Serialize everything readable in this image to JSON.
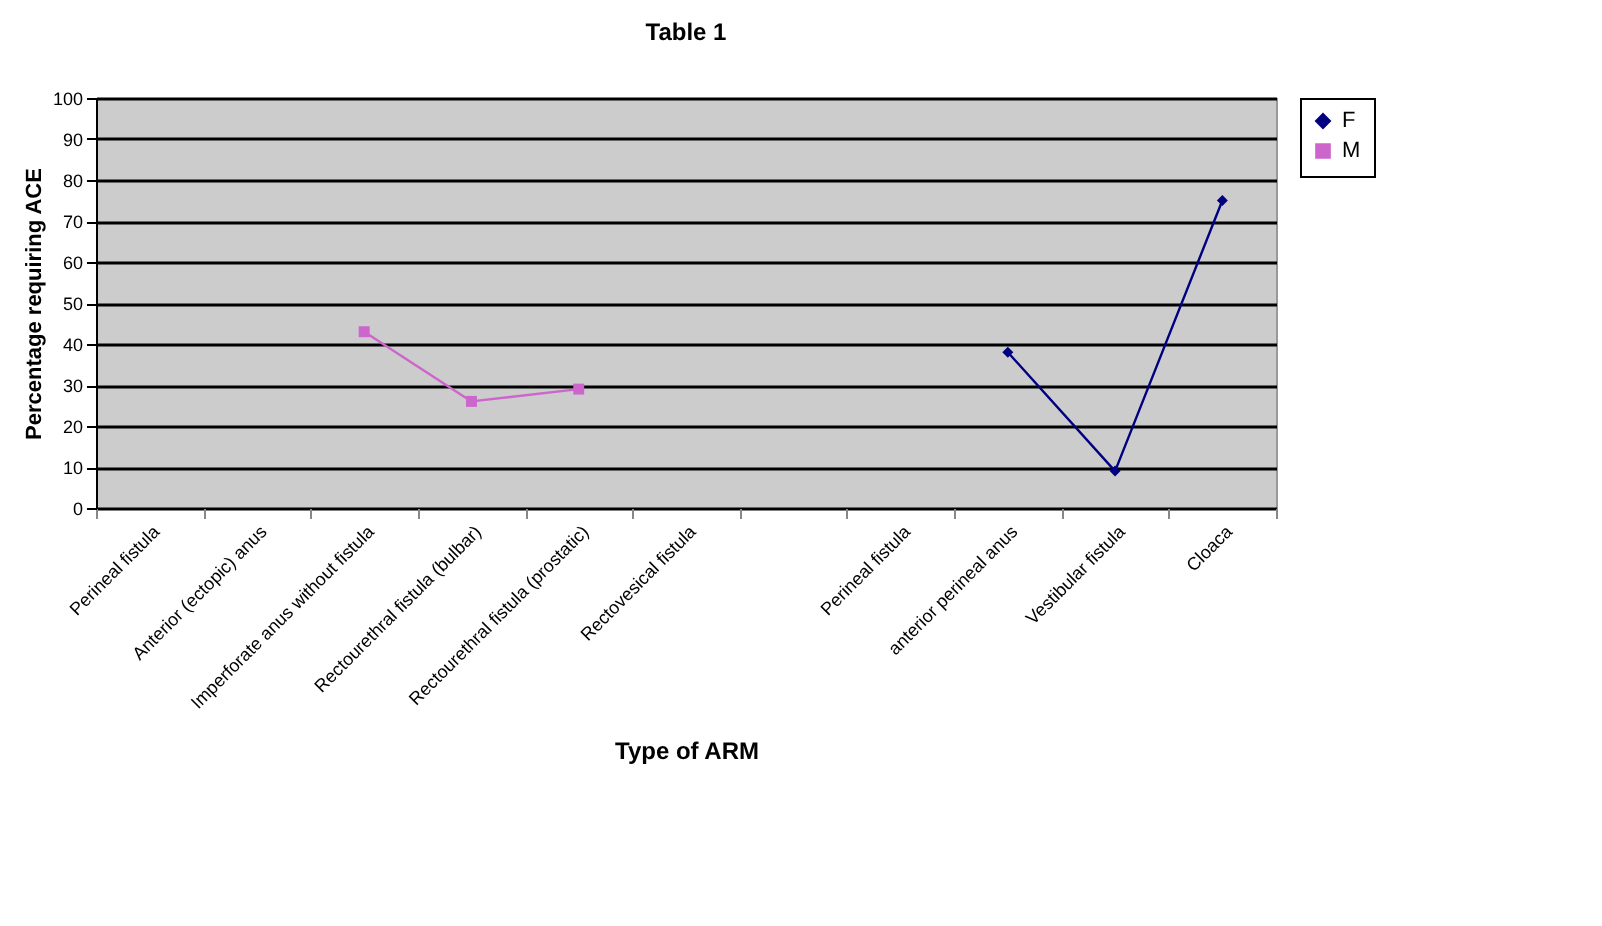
{
  "chart_data": {
    "type": "line",
    "title": "Table 1",
    "xlabel": "Type of ARM",
    "ylabel": "Percentage requiring ACE",
    "categories": [
      "Perineal fistula",
      "Anterior (ectopic) anus",
      "Imperforate anus without fistula",
      "Rectourethral fistula (bulbar)",
      "Rectourethral fistula (prostatic)",
      "Rectovesical fistula",
      null,
      "Perineal fistula",
      "anterior perineal anus",
      "Vestibular fistula",
      "Cloaca"
    ],
    "series": [
      {
        "name": "F",
        "color": "#000080",
        "marker": "diamond",
        "values": [
          null,
          null,
          null,
          null,
          null,
          null,
          null,
          null,
          38,
          9,
          75
        ]
      },
      {
        "name": "M",
        "color": "#cc66cc",
        "marker": "square",
        "values": [
          null,
          null,
          43,
          26,
          29,
          null,
          null,
          null,
          null,
          null,
          null
        ]
      }
    ],
    "ylim": [
      0,
      100
    ],
    "yticks": [
      0,
      10,
      20,
      30,
      40,
      50,
      60,
      70,
      80,
      90,
      100
    ],
    "grid": true,
    "legend": "right"
  }
}
